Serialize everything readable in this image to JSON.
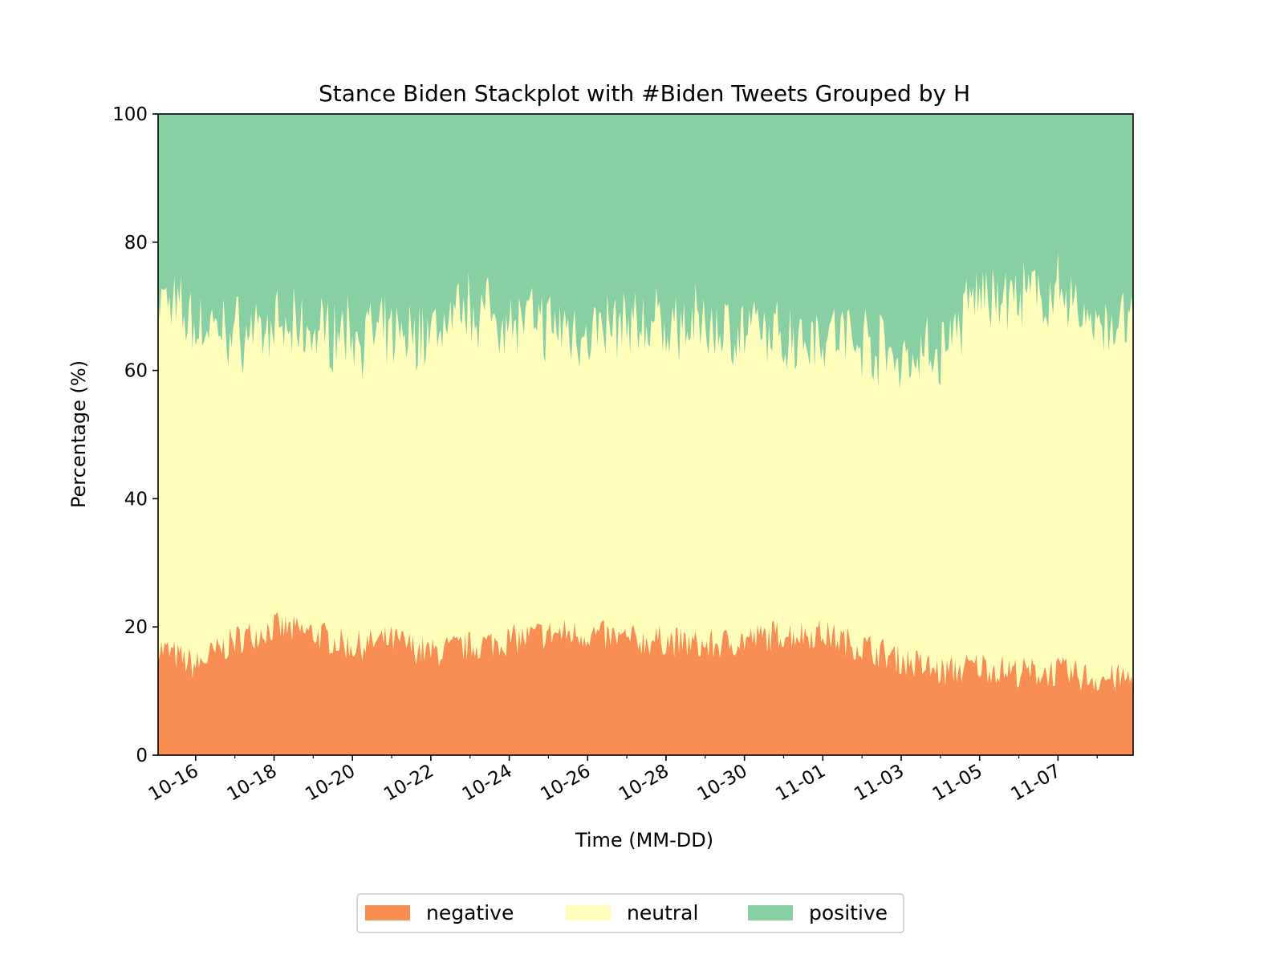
{
  "chart_data": {
    "type": "area",
    "stacked": true,
    "title": "Stance Biden Stackplot with #Biden Tweets Grouped by H",
    "xlabel": "Time (MM-DD)",
    "ylabel": "Percentage (%)",
    "ylim": [
      0,
      100
    ],
    "yticks": [
      "0",
      "20",
      "40",
      "60",
      "80",
      "100"
    ],
    "xlim": [
      "10-15 01:00",
      "11-08 22:00"
    ],
    "xticks": [
      {
        "date": "10-16",
        "label": "10-16"
      },
      {
        "date": "10-18",
        "label": "10-18"
      },
      {
        "date": "10-20",
        "label": "10-20"
      },
      {
        "date": "10-22",
        "label": "10-22"
      },
      {
        "date": "10-24",
        "label": "10-24"
      },
      {
        "date": "10-26",
        "label": "10-26"
      },
      {
        "date": "10-28",
        "label": "10-28"
      },
      {
        "date": "10-30",
        "label": "10-30"
      },
      {
        "date": "11-01",
        "label": "11-01"
      },
      {
        "date": "11-03",
        "label": "11-03"
      },
      {
        "date": "11-05",
        "label": "11-05"
      },
      {
        "date": "11-07",
        "label": "11-07"
      }
    ],
    "grid": false,
    "legend_position": "bottom-center",
    "x": [
      "10-15",
      "10-16",
      "10-17",
      "10-18",
      "10-19",
      "10-20",
      "10-21",
      "10-22",
      "10-23",
      "10-24",
      "10-25",
      "10-26",
      "10-27",
      "10-28",
      "10-29",
      "10-30",
      "10-31",
      "11-01",
      "11-02",
      "11-03",
      "11-04",
      "11-05",
      "11-06",
      "11-07",
      "11-08"
    ],
    "series": [
      {
        "name": "negative",
        "color": "#f88e53",
        "values": [
          17,
          14,
          18,
          20,
          19,
          17,
          18,
          16,
          17,
          18,
          19,
          19,
          18,
          18,
          17,
          18,
          19,
          19,
          17,
          15,
          13,
          14,
          13,
          13,
          12
        ]
      },
      {
        "name": "neutral",
        "color": "#ffffbb",
        "values": [
          55,
          53,
          48,
          46,
          47,
          49,
          47,
          50,
          53,
          50,
          48,
          47,
          49,
          49,
          50,
          48,
          46,
          47,
          48,
          47,
          50,
          58,
          58,
          59,
          55
        ]
      },
      {
        "name": "positive",
        "color": "#88cfa4",
        "values": [
          28,
          33,
          34,
          34,
          34,
          34,
          35,
          34,
          30,
          32,
          33,
          34,
          33,
          33,
          33,
          34,
          35,
          34,
          35,
          38,
          37,
          28,
          29,
          28,
          33
        ]
      }
    ]
  }
}
